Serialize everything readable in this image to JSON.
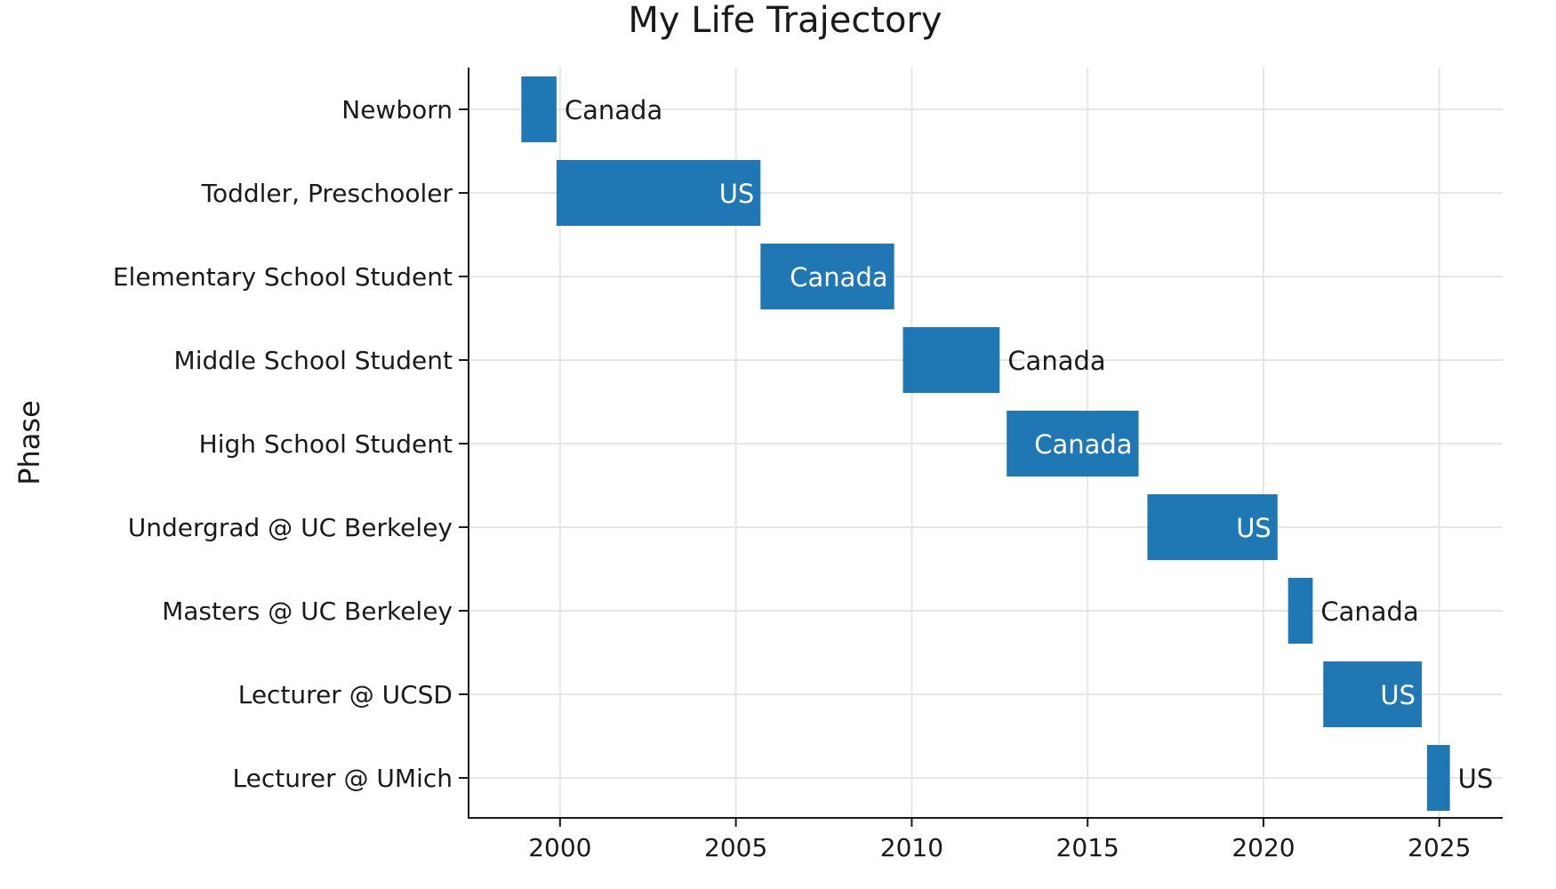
{
  "chart_data": {
    "type": "bar",
    "orientation": "horizontal-timeline",
    "title": "My Life Trajectory",
    "ylabel": "Phase",
    "xlabel": "",
    "xlim": [
      1997.4,
      2026.8
    ],
    "x_ticks": [
      2000,
      2005,
      2010,
      2015,
      2020,
      2025
    ],
    "grid": true,
    "bar_color": "#1f77b4",
    "label_inside_color": "#ffffff",
    "label_outside_color": "#1a1a1a",
    "series": [
      {
        "phase": "Newborn",
        "start": 1998.9,
        "end": 1999.9,
        "location": "Canada",
        "label_position": "outside"
      },
      {
        "phase": "Toddler, Preschooler",
        "start": 1999.9,
        "end": 2005.7,
        "location": "US",
        "label_position": "inside"
      },
      {
        "phase": "Elementary School Student",
        "start": 2005.7,
        "end": 2009.5,
        "location": "Canada",
        "label_position": "inside"
      },
      {
        "phase": "Middle School Student",
        "start": 2009.75,
        "end": 2012.5,
        "location": "Canada",
        "label_position": "outside"
      },
      {
        "phase": "High School Student",
        "start": 2012.7,
        "end": 2016.45,
        "location": "Canada",
        "label_position": "inside"
      },
      {
        "phase": "Undergrad @ UC Berkeley",
        "start": 2016.7,
        "end": 2020.4,
        "location": "US",
        "label_position": "inside"
      },
      {
        "phase": "Masters @ UC Berkeley",
        "start": 2020.7,
        "end": 2021.4,
        "location": "Canada",
        "label_position": "outside"
      },
      {
        "phase": "Lecturer @ UCSD",
        "start": 2021.7,
        "end": 2024.5,
        "location": "US",
        "label_position": "inside"
      },
      {
        "phase": "Lecturer @ UMich",
        "start": 2024.65,
        "end": 2025.3,
        "location": "US",
        "label_position": "outside"
      }
    ]
  }
}
